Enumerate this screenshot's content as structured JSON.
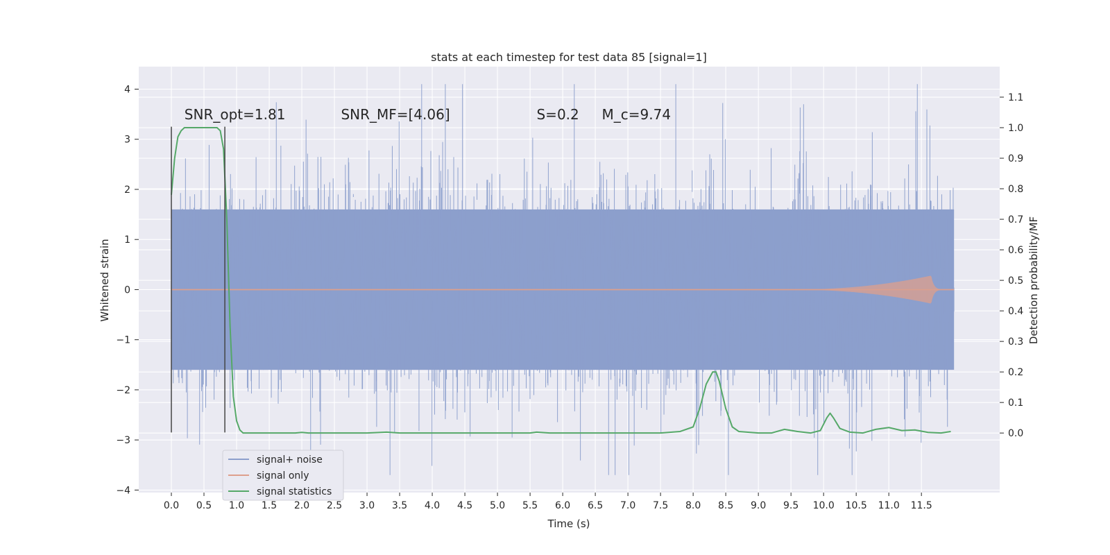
{
  "chart_data": {
    "type": "line",
    "title": "stats at each timestep for test data 85 [signal=1]",
    "xlabel": "Time (s)",
    "ylabel": "Whitened strain",
    "y2label": "Detection probability/MF",
    "xlim": [
      -0.5,
      12.7
    ],
    "ylim": [
      -4.05,
      4.45
    ],
    "y2lim": [
      -0.195,
      1.2
    ],
    "x_ticks": [
      0.0,
      0.5,
      1.0,
      1.5,
      2.0,
      2.5,
      3.0,
      3.5,
      4.0,
      4.5,
      5.0,
      5.5,
      6.0,
      6.5,
      7.0,
      7.5,
      8.0,
      8.5,
      9.0,
      9.5,
      10.0,
      10.5,
      11.0,
      11.5
    ],
    "x_tick_labels": [
      "0.0",
      "0.5",
      "1.0",
      "1.5",
      "2.0",
      "2.5",
      "3.0",
      "3.5",
      "4.0",
      "4.5",
      "5.0",
      "5.5",
      "6.0",
      "6.5",
      "7.0",
      "7.5",
      "8.0",
      "8.5",
      "9.0",
      "9.5",
      "10.0",
      "10.5",
      "11.0",
      "11.5"
    ],
    "y_ticks": [
      -4,
      -3,
      -2,
      -1,
      0,
      1,
      2,
      3,
      4
    ],
    "y_tick_labels": [
      "−4",
      "−3",
      "−2",
      "−1",
      "0",
      "1",
      "2",
      "3",
      "4"
    ],
    "y2_ticks": [
      0.0,
      0.1,
      0.2,
      0.3,
      0.4,
      0.5,
      0.6,
      0.7,
      0.8,
      0.9,
      1.0,
      1.1
    ],
    "y2_tick_labels": [
      "0.0",
      "0.1",
      "0.2",
      "0.3",
      "0.4",
      "0.5",
      "0.6",
      "0.7",
      "0.8",
      "0.9",
      "1.0",
      "1.1"
    ],
    "grid": true,
    "legend_position": "lower-left",
    "series": [
      {
        "name": "signal+ noise",
        "axis": "left",
        "color": "#8c9fcc",
        "x_range": [
          0.0,
          12.0
        ],
        "typical_band": [
          -1.6,
          1.6
        ],
        "peak_range": [
          -3.7,
          4.1
        ]
      },
      {
        "name": "signal only",
        "axis": "left",
        "color": "#dd9f8c",
        "x_range": [
          0.0,
          12.0
        ],
        "chirp_peak_time": 11.65,
        "chirp_peak_amplitude": 0.28
      },
      {
        "name": "signal statistics",
        "axis": "right",
        "color": "#55a868",
        "x": [
          0.0,
          0.05,
          0.1,
          0.15,
          0.2,
          0.3,
          0.4,
          0.5,
          0.6,
          0.65,
          0.7,
          0.75,
          0.8,
          0.85,
          0.9,
          0.95,
          1.0,
          1.05,
          1.1,
          1.5,
          1.9,
          2.0,
          2.1,
          2.5,
          3.0,
          3.3,
          3.5,
          4.0,
          5.0,
          5.5,
          5.6,
          5.8,
          6.0,
          7.0,
          7.5,
          7.8,
          8.0,
          8.1,
          8.2,
          8.3,
          8.35,
          8.4,
          8.5,
          8.6,
          8.7,
          9.0,
          9.2,
          9.4,
          9.6,
          9.8,
          9.95,
          10.05,
          10.1,
          10.15,
          10.25,
          10.4,
          10.6,
          10.8,
          11.0,
          11.2,
          11.4,
          11.6,
          11.8,
          11.95
        ],
        "y": [
          0.78,
          0.9,
          0.97,
          0.99,
          1.0,
          1.0,
          1.0,
          1.0,
          1.0,
          1.0,
          1.0,
          0.99,
          0.93,
          0.7,
          0.35,
          0.12,
          0.04,
          0.01,
          0.0,
          0.0,
          0.0,
          0.002,
          0.0,
          0.0,
          0.0,
          0.003,
          0.0,
          0.0,
          0.0,
          0.0,
          0.003,
          0.0,
          0.0,
          0.0,
          0.0,
          0.005,
          0.02,
          0.08,
          0.16,
          0.2,
          0.2,
          0.17,
          0.08,
          0.02,
          0.005,
          0.0,
          0.0,
          0.012,
          0.005,
          0.0,
          0.008,
          0.05,
          0.065,
          0.05,
          0.015,
          0.003,
          0.0,
          0.012,
          0.018,
          0.008,
          0.01,
          0.002,
          0.0,
          0.005
        ]
      }
    ],
    "vlines": [
      {
        "x": 0.0,
        "y_range": [
          -2.85,
          3.25
        ]
      },
      {
        "x": 0.82,
        "y_range": [
          -2.85,
          3.25
        ]
      }
    ],
    "annotations": [
      {
        "text": "SNR_opt=1.81",
        "x": 0.2,
        "y": 3.4
      },
      {
        "text": "SNR_MF=[4.06]",
        "x": 2.6,
        "y": 3.4
      },
      {
        "text": "S=0.2",
        "x": 5.6,
        "y": 3.4
      },
      {
        "text": "M_c=9.74",
        "x": 6.6,
        "y": 3.4
      }
    ]
  }
}
